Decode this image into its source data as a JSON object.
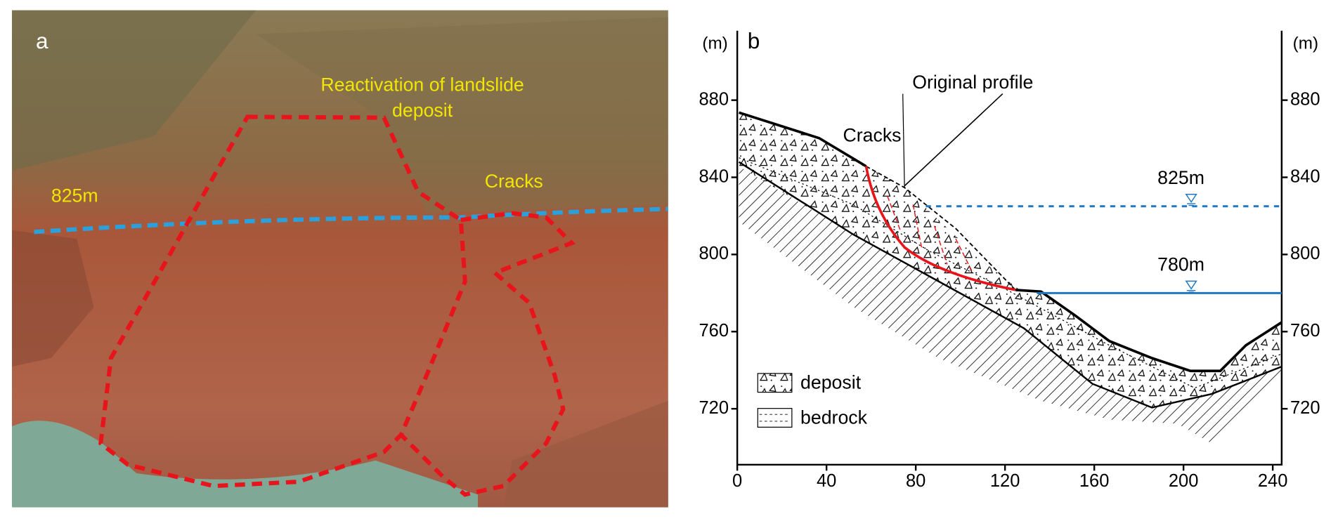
{
  "panel_a": {
    "label": "a",
    "title_lines": [
      "Reactivation of landslide",
      "deposit"
    ],
    "level_label": "825m",
    "cracks_label": "Cracks"
  },
  "panel_b": {
    "label": "b",
    "y_unit": "(m)",
    "y2_unit": "(m)",
    "xlim": [
      0,
      244
    ],
    "ylim": [
      691,
      916
    ],
    "xticks": [
      0,
      40,
      80,
      120,
      160,
      200,
      240
    ],
    "yticks": [
      720,
      760,
      800,
      840,
      880
    ],
    "y2ticks": [
      720,
      760,
      800,
      840,
      880
    ],
    "water_levels": [
      {
        "label": "825m",
        "value": 825,
        "style": "dashed"
      },
      {
        "label": "780m",
        "value": 780,
        "style": "solid"
      }
    ],
    "original_profile_label": "Original profile",
    "cracks_label": "Cracks",
    "legend": [
      "deposit",
      "bedrock"
    ]
  }
}
